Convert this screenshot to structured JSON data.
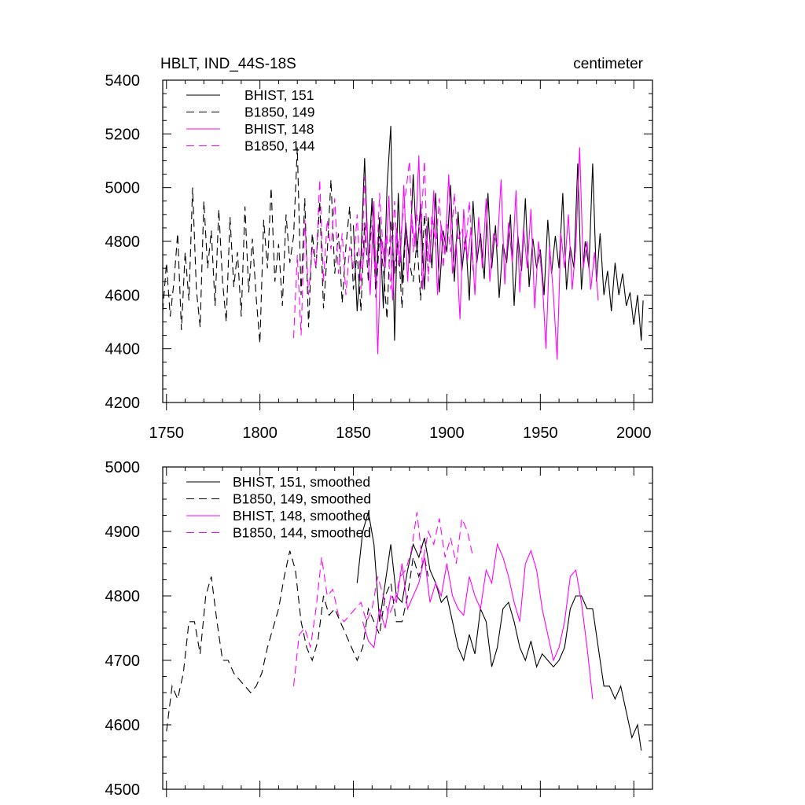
{
  "chart_data": [
    {
      "type": "line",
      "title": "HBLT, IND_44S-18S",
      "units": "centimeter",
      "xlim": [
        1748,
        2010
      ],
      "ylim": [
        4200,
        5400
      ],
      "xticks": [
        1750,
        1800,
        1850,
        1900,
        1950,
        2000
      ],
      "yticks": [
        4200,
        4400,
        4600,
        4800,
        5000,
        5200,
        5400
      ],
      "grid": false,
      "legend_placement": "top-left",
      "series": [
        {
          "name": "BHIST, 151",
          "color": "#000000",
          "dash": "solid",
          "x": [
            1850,
            1852,
            1854,
            1856,
            1858,
            1860,
            1862,
            1864,
            1866,
            1868,
            1870,
            1872,
            1874,
            1876,
            1878,
            1880,
            1882,
            1884,
            1886,
            1888,
            1890,
            1892,
            1894,
            1896,
            1898,
            1900,
            1902,
            1904,
            1906,
            1908,
            1910,
            1912,
            1914,
            1916,
            1918,
            1920,
            1922,
            1924,
            1926,
            1928,
            1930,
            1932,
            1934,
            1936,
            1938,
            1940,
            1942,
            1944,
            1946,
            1948,
            1950,
            1952,
            1954,
            1956,
            1958,
            1960,
            1962,
            1964,
            1966,
            1968,
            1970,
            1972,
            1974,
            1976,
            1978,
            1980,
            1982,
            1984,
            1986,
            1988,
            1990,
            1992,
            1994,
            1996,
            1998,
            2000,
            2002,
            2004,
            2005
          ],
          "y": [
            4860,
            4540,
            4740,
            5110,
            4720,
            4960,
            4620,
            4890,
            4550,
            5000,
            5230,
            4430,
            4980,
            4640,
            4870,
            4720,
            5050,
            4760,
            4940,
            4620,
            4890,
            4700,
            4980,
            4610,
            4840,
            4760,
            5010,
            4650,
            4910,
            4690,
            4820,
            4580,
            4950,
            4720,
            4830,
            4660,
            4980,
            4700,
            4860,
            4590,
            4790,
            4720,
            4900,
            4560,
            4820,
            4690,
            4960,
            4630,
            4810,
            4700,
            4770,
            4600,
            4880,
            4680,
            4820,
            4700,
            4980,
            4620,
            4780,
            4700,
            5090,
            4620,
            4800,
            4700,
            5090,
            4650,
            4830,
            4600,
            4690,
            4540,
            4720,
            4600,
            4680,
            4560,
            4610,
            4490,
            4600,
            4430,
            4580
          ]
        },
        {
          "name": "B1850, 149",
          "color": "#000000",
          "dash": "dashed",
          "x": [
            1748,
            1750,
            1752,
            1754,
            1756,
            1758,
            1760,
            1762,
            1764,
            1766,
            1768,
            1770,
            1772,
            1774,
            1776,
            1778,
            1780,
            1782,
            1784,
            1786,
            1788,
            1790,
            1792,
            1794,
            1796,
            1798,
            1800,
            1802,
            1804,
            1806,
            1808,
            1810,
            1812,
            1814,
            1816,
            1818,
            1820,
            1822,
            1824,
            1826,
            1828,
            1830,
            1832,
            1834,
            1836,
            1838,
            1840,
            1842,
            1844,
            1846,
            1848,
            1850,
            1852,
            1854,
            1856,
            1858,
            1860,
            1862,
            1864,
            1866,
            1868,
            1870,
            1872,
            1874,
            1876,
            1878,
            1880,
            1882,
            1884,
            1886,
            1888,
            1890
          ],
          "y": [
            4540,
            4720,
            4520,
            4650,
            4830,
            4470,
            4760,
            4580,
            5000,
            4620,
            4480,
            4950,
            4700,
            4840,
            4560,
            4920,
            4650,
            4500,
            4890,
            4630,
            4760,
            4520,
            4930,
            4610,
            4810,
            4590,
            4420,
            4880,
            4700,
            5000,
            4650,
            4790,
            4560,
            4900,
            4720,
            4820,
            5150,
            4600,
            4960,
            4480,
            4830,
            4700,
            4950,
            4550,
            4760,
            5030,
            4680,
            4830,
            4570,
            4780,
            4930,
            4620,
            4760,
            4540,
            4870,
            4650,
            4960,
            4590,
            4820,
            4700,
            4510,
            4880,
            4680,
            4800,
            4550,
            4860,
            4720,
            4650,
            4800,
            4580,
            4900,
            4700
          ]
        },
        {
          "name": "BHIST, 148",
          "color": "#ff00ff",
          "dash": "solid",
          "x": [
            1855,
            1857,
            1859,
            1861,
            1863,
            1865,
            1867,
            1869,
            1871,
            1873,
            1875,
            1877,
            1879,
            1881,
            1883,
            1885,
            1887,
            1889,
            1891,
            1893,
            1895,
            1897,
            1899,
            1901,
            1903,
            1905,
            1907,
            1909,
            1911,
            1913,
            1915,
            1917,
            1919,
            1921,
            1923,
            1925,
            1927,
            1929,
            1931,
            1933,
            1935,
            1937,
            1939,
            1941,
            1943,
            1945,
            1947,
            1949,
            1951,
            1953,
            1955,
            1957,
            1959,
            1961,
            1963,
            1965,
            1967,
            1969,
            1971,
            1973,
            1975,
            1977,
            1979,
            1981
          ],
          "y": [
            4700,
            4880,
            4600,
            4950,
            4380,
            4810,
            4700,
            4970,
            4580,
            4850,
            4720,
            5010,
            4650,
            4900,
            4780,
            5120,
            4620,
            4830,
            4720,
            4990,
            4600,
            4860,
            4750,
            5050,
            4680,
            4800,
            4510,
            4920,
            4730,
            4850,
            4600,
            4890,
            4700,
            4960,
            4650,
            4830,
            4780,
            5030,
            4640,
            4870,
            4720,
            4990,
            4610,
            4850,
            4700,
            4920,
            4550,
            4800,
            4660,
            4400,
            4780,
            4600,
            4360,
            4830,
            4700,
            4900,
            4620,
            4780,
            5150,
            4700,
            4800,
            4620,
            4760,
            4580
          ]
        },
        {
          "name": "B1850, 144",
          "color": "#ff00ff",
          "dash": "dashed",
          "x": [
            1818,
            1820,
            1822,
            1824,
            1826,
            1828,
            1830,
            1832,
            1834,
            1836,
            1838,
            1840,
            1842,
            1844,
            1846,
            1848,
            1850,
            1852,
            1854,
            1856,
            1858,
            1860,
            1862,
            1864,
            1866,
            1868,
            1870,
            1872,
            1874,
            1876,
            1878,
            1880,
            1882,
            1884,
            1886,
            1888,
            1890,
            1892,
            1894,
            1896,
            1898,
            1900,
            1902,
            1904,
            1906,
            1908,
            1910,
            1912,
            1914
          ],
          "y": [
            4440,
            4750,
            4450,
            4880,
            4600,
            4780,
            4700,
            5030,
            4650,
            4880,
            4770,
            4960,
            4680,
            4830,
            4600,
            4780,
            4700,
            4900,
            4620,
            5040,
            4720,
            4860,
            4640,
            4980,
            4750,
            4830,
            4620,
            4950,
            4710,
            4870,
            4980,
            5100,
            4760,
            4900,
            4820,
            5100,
            4650,
            4900,
            4780,
            4960,
            4700,
            4880,
            4760,
            4980,
            4800,
            4850,
            4760,
            4950,
            4690
          ]
        }
      ]
    },
    {
      "type": "line",
      "xlim": [
        1748,
        2010
      ],
      "ylim": [
        4500,
        5000
      ],
      "yticks": [
        4500,
        4600,
        4700,
        4800,
        4900,
        5000
      ],
      "grid": false,
      "legend_placement": "top-left",
      "series": [
        {
          "name": "BHIST, 151, smoothed",
          "color": "#000000",
          "dash": "solid",
          "x": [
            1852,
            1855,
            1858,
            1861,
            1864,
            1867,
            1870,
            1873,
            1876,
            1879,
            1882,
            1885,
            1888,
            1891,
            1894,
            1897,
            1900,
            1903,
            1906,
            1909,
            1912,
            1915,
            1918,
            1921,
            1924,
            1927,
            1930,
            1933,
            1936,
            1939,
            1942,
            1945,
            1948,
            1951,
            1954,
            1957,
            1960,
            1963,
            1966,
            1969,
            1972,
            1975,
            1978,
            1981,
            1984,
            1987,
            1990,
            1993,
            1996,
            1999,
            2002,
            2004
          ],
          "y": [
            4820,
            4900,
            4930,
            4880,
            4760,
            4820,
            4880,
            4800,
            4790,
            4840,
            4880,
            4860,
            4890,
            4840,
            4820,
            4790,
            4800,
            4760,
            4720,
            4700,
            4740,
            4710,
            4780,
            4760,
            4690,
            4720,
            4780,
            4790,
            4760,
            4720,
            4700,
            4730,
            4690,
            4710,
            4700,
            4690,
            4700,
            4720,
            4780,
            4800,
            4800,
            4780,
            4780,
            4720,
            4660,
            4660,
            4640,
            4660,
            4620,
            4580,
            4600,
            4560
          ]
        },
        {
          "name": "B1850, 149, smoothed",
          "color": "#000000",
          "dash": "dashed",
          "x": [
            1750,
            1753,
            1756,
            1759,
            1762,
            1765,
            1768,
            1771,
            1774,
            1777,
            1780,
            1783,
            1786,
            1789,
            1792,
            1795,
            1798,
            1801,
            1804,
            1807,
            1810,
            1813,
            1816,
            1819,
            1822,
            1825,
            1828,
            1831,
            1834,
            1837,
            1840,
            1843,
            1846,
            1849,
            1852,
            1855,
            1858,
            1861,
            1864,
            1867,
            1870,
            1873,
            1876,
            1879,
            1882,
            1885,
            1888,
            1890
          ],
          "y": [
            4590,
            4660,
            4640,
            4680,
            4760,
            4760,
            4710,
            4800,
            4830,
            4760,
            4700,
            4700,
            4680,
            4670,
            4660,
            4650,
            4660,
            4680,
            4720,
            4750,
            4780,
            4830,
            4870,
            4840,
            4760,
            4720,
            4700,
            4730,
            4800,
            4770,
            4780,
            4760,
            4740,
            4720,
            4700,
            4720,
            4780,
            4760,
            4740,
            4800,
            4820,
            4760,
            4760,
            4800,
            4860,
            4830,
            4860,
            4830
          ]
        },
        {
          "name": "BHIST, 148, smoothed",
          "color": "#ff00ff",
          "dash": "solid",
          "x": [
            1855,
            1858,
            1861,
            1864,
            1867,
            1870,
            1873,
            1876,
            1879,
            1882,
            1885,
            1888,
            1891,
            1894,
            1897,
            1900,
            1903,
            1906,
            1909,
            1912,
            1915,
            1918,
            1921,
            1924,
            1927,
            1930,
            1933,
            1936,
            1939,
            1942,
            1945,
            1948,
            1951,
            1954,
            1957,
            1960,
            1963,
            1966,
            1969,
            1972,
            1975,
            1978
          ],
          "y": [
            4760,
            4730,
            4720,
            4780,
            4750,
            4800,
            4790,
            4850,
            4780,
            4800,
            4820,
            4860,
            4790,
            4820,
            4800,
            4850,
            4800,
            4780,
            4770,
            4830,
            4800,
            4780,
            4840,
            4820,
            4880,
            4860,
            4830,
            4790,
            4760,
            4850,
            4870,
            4840,
            4780,
            4740,
            4700,
            4720,
            4760,
            4830,
            4840,
            4790,
            4720,
            4640
          ]
        },
        {
          "name": "B1850, 144, smoothed",
          "color": "#ff00ff",
          "dash": "dashed",
          "x": [
            1818,
            1821,
            1824,
            1827,
            1830,
            1833,
            1836,
            1839,
            1842,
            1845,
            1848,
            1851,
            1854,
            1857,
            1860,
            1863,
            1866,
            1869,
            1872,
            1875,
            1878,
            1881,
            1884,
            1887,
            1890,
            1893,
            1896,
            1899,
            1902,
            1905,
            1908,
            1911,
            1914
          ],
          "y": [
            4660,
            4740,
            4750,
            4720,
            4780,
            4860,
            4800,
            4810,
            4770,
            4760,
            4770,
            4780,
            4790,
            4760,
            4780,
            4830,
            4800,
            4770,
            4790,
            4830,
            4840,
            4870,
            4930,
            4850,
            4900,
            4880,
            4920,
            4860,
            4890,
            4850,
            4920,
            4900,
            4860
          ]
        }
      ]
    }
  ]
}
